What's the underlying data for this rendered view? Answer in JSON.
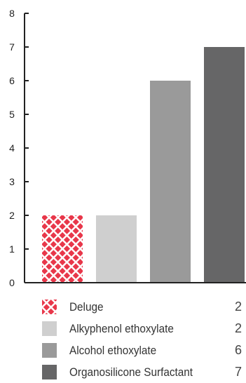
{
  "chart_data": {
    "type": "bar",
    "categories": [
      "Deluge",
      "Alkyphenol ethoxylate",
      "Alcohol ethoxylate",
      "Organosilicone Surfactant"
    ],
    "values": [
      2,
      2,
      6,
      7
    ],
    "ylim": [
      0,
      8
    ],
    "yticks": [
      0,
      1,
      2,
      3,
      4,
      5,
      6,
      7,
      8
    ],
    "grid": false,
    "legend_placement": "bottom",
    "colors": [
      "#e8374a",
      "#cfcfcf",
      "#9a9a9a",
      "#666667"
    ],
    "patterns": [
      "crosshatch",
      "solid",
      "solid",
      "solid"
    ]
  },
  "legend": [
    {
      "label": "Deluge",
      "value": "2"
    },
    {
      "label": "Alkyphenol ethoxylate",
      "value": "2"
    },
    {
      "label": "Alcohol ethoxylate",
      "value": "6"
    },
    {
      "label": "Organosilicone Surfactant",
      "value": "7"
    }
  ]
}
